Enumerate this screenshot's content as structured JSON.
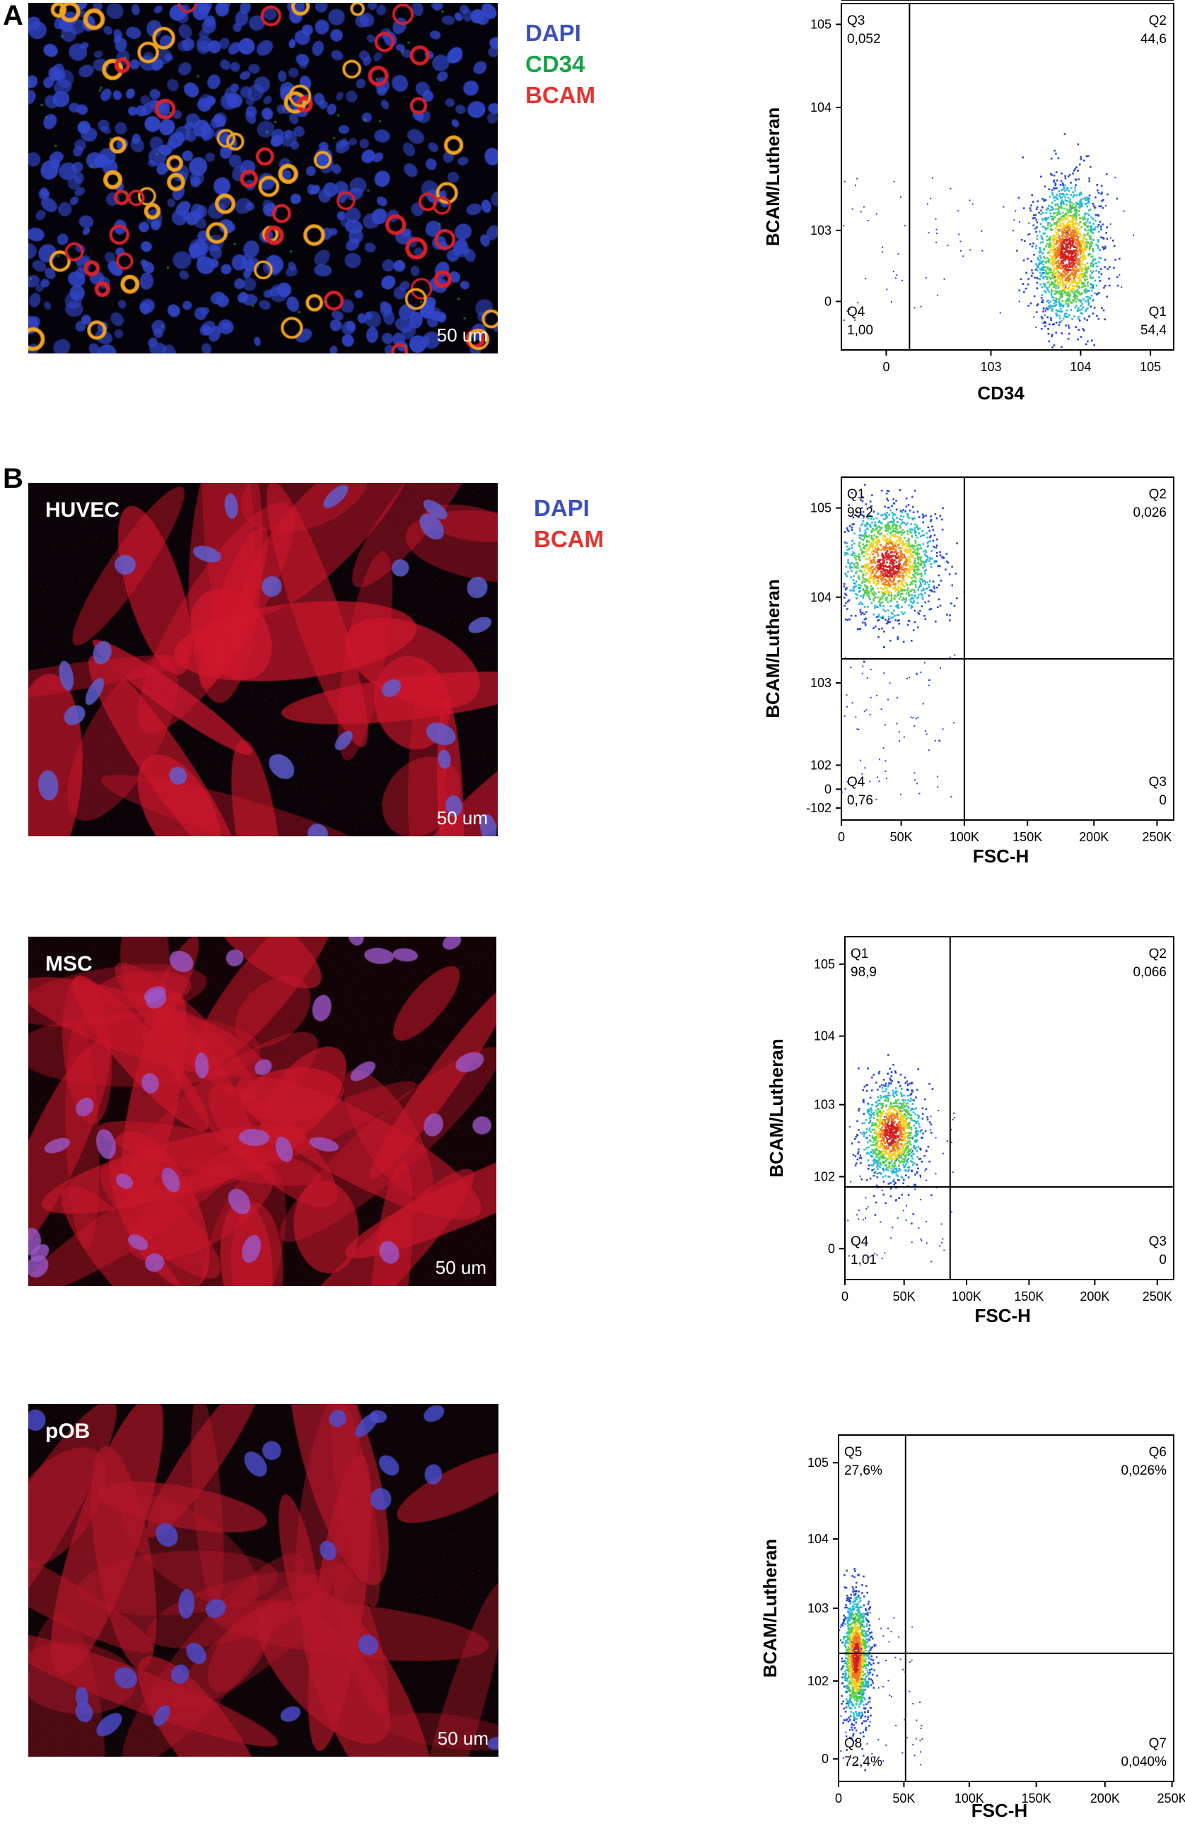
{
  "panels": [
    {
      "letter": "A",
      "micro_label": "",
      "scale_bar": "50 um",
      "stains": [
        {
          "text": "DAPI",
          "color": "#3c4fbf"
        },
        {
          "text": "CD34",
          "color": "#1aa24a"
        },
        {
          "text": "BCAM",
          "color": "#e3342f"
        }
      ],
      "image_palette": {
        "background": "#05030a",
        "nuclei": "#3146c8",
        "membrane_ring": "#f0a21e",
        "cytoplasm": "#d8202a",
        "marker_green": "#2fb24a"
      }
    },
    {
      "letter": "B",
      "micro_label": "HUVEC",
      "scale_bar": "50 um",
      "stains": [
        {
          "text": "DAPI",
          "color": "#3c4fbf"
        },
        {
          "text": "BCAM",
          "color": "#e3342f"
        }
      ],
      "image_palette": {
        "background": "#0a0308",
        "nuclei": "#5e61d8",
        "cytoplasm": "#d1172d"
      }
    },
    {
      "letter": "",
      "micro_label": "MSC",
      "scale_bar": "50 um",
      "stains": [],
      "image_palette": {
        "background": "#120306",
        "nuclei": "#9a57c9",
        "cytoplasm": "#c8172b"
      }
    },
    {
      "letter": "",
      "micro_label": "pOB",
      "scale_bar": "50 um",
      "stains": [],
      "image_palette": {
        "background": "#0c0406",
        "nuclei": "#4c4fd3",
        "cytoplasm": "#b4172a"
      }
    }
  ],
  "chart_data": [
    {
      "type": "scatter",
      "ylabel": "BCAM/Lutheran",
      "xlabel": "CD34",
      "xticks": [
        "0",
        "10^3",
        "10^4",
        "10^5"
      ],
      "yticks": [
        "0",
        "10^3",
        "10^4",
        "10^5"
      ],
      "quadrants": [
        {
          "name": "Q3",
          "value": "0,052",
          "position": "top-left"
        },
        {
          "name": "Q2",
          "value": "44,6",
          "position": "top-right"
        },
        {
          "name": "Q4",
          "value": "1,00",
          "position": "bottom-left"
        },
        {
          "name": "Q1",
          "value": "54,4",
          "position": "bottom-right"
        }
      ],
      "gate_x": "between 0 and 10^3",
      "gate_y": "between 0 and 10^3",
      "population_center": {
        "x": "10^4",
        "y": "10^3"
      },
      "density_colors": [
        "#2745d8",
        "#23b7d6",
        "#4fce4f",
        "#f2d11c",
        "#f07a1c",
        "#d61f1f"
      ]
    },
    {
      "type": "scatter",
      "ylabel": "BCAM/Lutheran",
      "xlabel": "FSC-H",
      "xticks": [
        "0",
        "50K",
        "100K",
        "150K",
        "200K",
        "250K"
      ],
      "yticks": [
        "-10^2",
        "0",
        "10^2",
        "10^3",
        "10^4",
        "10^5"
      ],
      "quadrants": [
        {
          "name": "Q1",
          "value": "99,2",
          "position": "top-left"
        },
        {
          "name": "Q2",
          "value": "0,026",
          "position": "top-right"
        },
        {
          "name": "Q4",
          "value": "0,76",
          "position": "bottom-left"
        },
        {
          "name": "Q3",
          "value": "0",
          "position": "bottom-right"
        }
      ],
      "gate_x": "100K",
      "gate_y": "10^3",
      "population_center": {
        "x": "25K",
        "y": "5x10^3"
      },
      "density_colors": [
        "#2745d8",
        "#23b7d6",
        "#4fce4f",
        "#f2d11c",
        "#f07a1c",
        "#d61f1f"
      ]
    },
    {
      "type": "scatter",
      "ylabel": "BCAM/Lutheran",
      "xlabel": "FSC-H",
      "xticks": [
        "0",
        "50K",
        "100K",
        "150K",
        "200K",
        "250K"
      ],
      "yticks": [
        "0",
        "10^2",
        "10^3",
        "10^4",
        "10^5"
      ],
      "quadrants": [
        {
          "name": "Q1",
          "value": "98,9",
          "position": "top-left"
        },
        {
          "name": "Q2",
          "value": "0,066",
          "position": "top-right"
        },
        {
          "name": "Q4",
          "value": "1,01",
          "position": "bottom-left"
        },
        {
          "name": "Q3",
          "value": "0",
          "position": "bottom-right"
        }
      ],
      "gate_x": "between 50K and 100K",
      "gate_y": "between 10^2 and 10^3",
      "population_center": {
        "x": "30K",
        "y": "3x10^2"
      },
      "density_colors": [
        "#2745d8",
        "#23b7d6",
        "#4fce4f",
        "#f2d11c",
        "#f07a1c",
        "#d61f1f"
      ]
    },
    {
      "type": "scatter",
      "ylabel": "BCAM/Lutheran",
      "xlabel": "FSC-H",
      "xticks": [
        "0",
        "50K",
        "100K",
        "150K",
        "200K",
        "250K"
      ],
      "yticks": [
        "0",
        "10^2",
        "10^3",
        "10^4",
        "10^5"
      ],
      "quadrants": [
        {
          "name": "Q5",
          "value": "27,6%",
          "position": "top-left"
        },
        {
          "name": "Q6",
          "value": "0,026%",
          "position": "top-right"
        },
        {
          "name": "Q8",
          "value": "72,4%",
          "position": "bottom-left"
        },
        {
          "name": "Q7",
          "value": "0,040%",
          "position": "bottom-right"
        }
      ],
      "gate_x": "between 50K and 100K",
      "gate_y": "between 10^2 and 10^3",
      "population_center": {
        "x": "15K",
        "y": "10^2"
      },
      "density_colors": [
        "#2745d8",
        "#23b7d6",
        "#4fce4f",
        "#f2d11c",
        "#f07a1c",
        "#d61f1f"
      ]
    }
  ]
}
